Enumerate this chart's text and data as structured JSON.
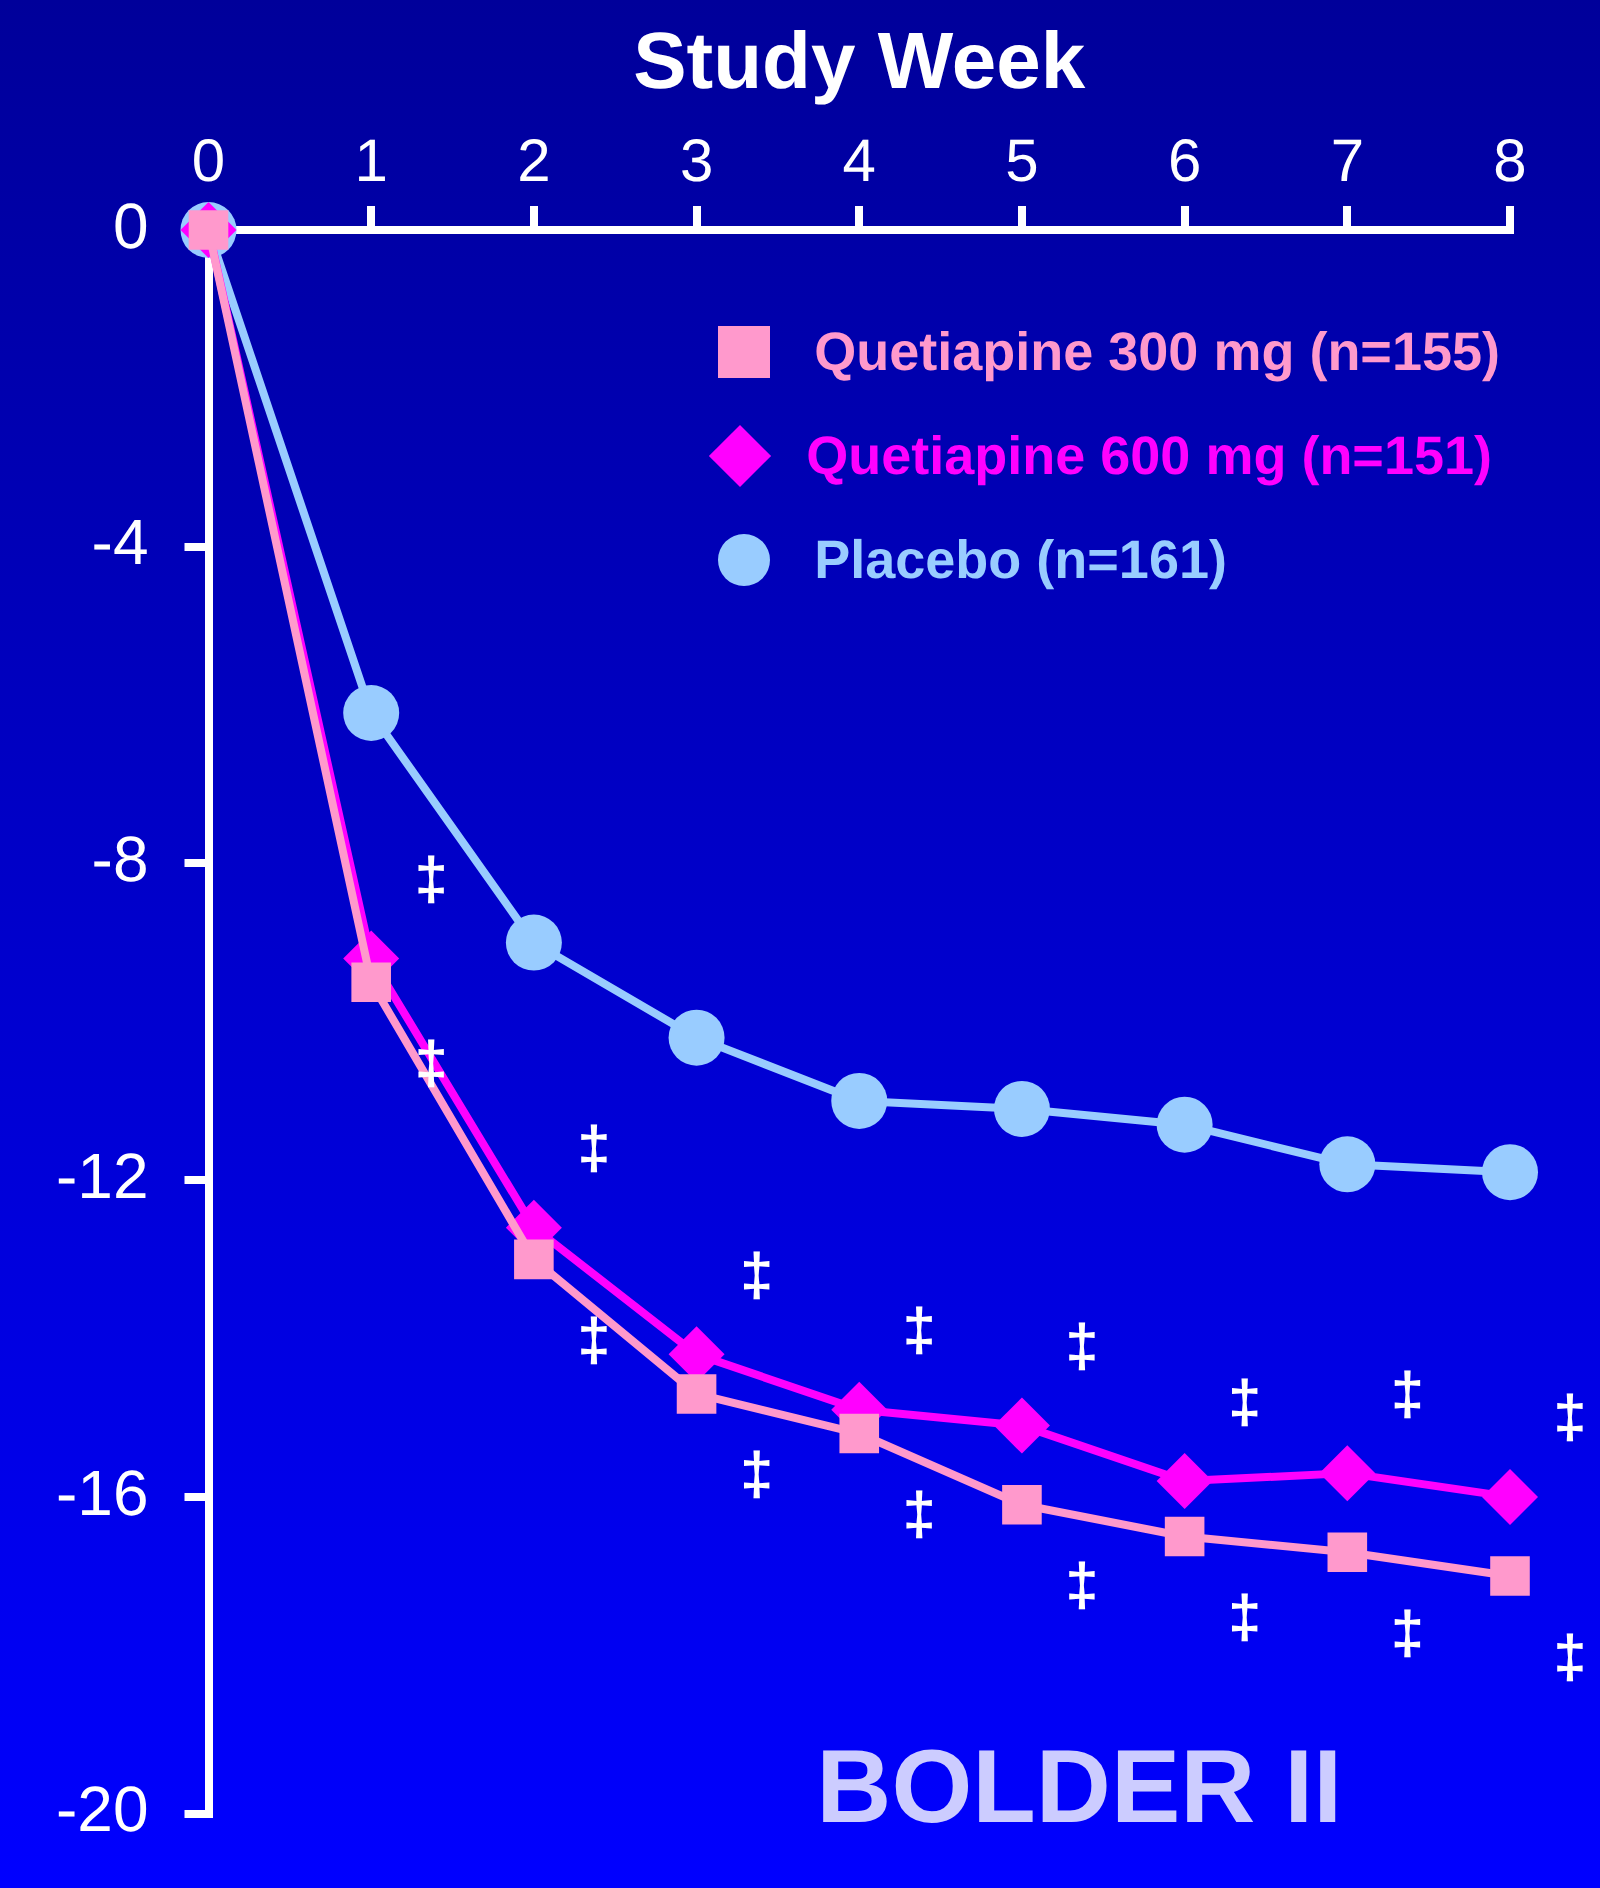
{
  "chart_data": {
    "type": "line",
    "xlabel": "Study Week",
    "x": [
      0,
      1,
      2,
      3,
      4,
      5,
      6,
      7,
      8
    ],
    "xlim": [
      0,
      8
    ],
    "xticks": [
      0,
      1,
      2,
      3,
      4,
      5,
      6,
      7,
      8
    ],
    "ylim": [
      -20,
      0
    ],
    "yticks": [
      0,
      -4,
      -8,
      -12,
      -16,
      -20
    ],
    "grid": false,
    "legend": "top right",
    "series": [
      {
        "name": "Quetiapine 300 mg (n=155)",
        "color": "#ff99cc",
        "marker": "square",
        "values": [
          0,
          -9.5,
          -13,
          -14.7,
          -15.2,
          -16.1,
          -16.5,
          -16.7,
          -17
        ]
      },
      {
        "name": "Quetiapine 600 mg (n=151)",
        "color": "#ff00ff",
        "marker": "diamond",
        "values": [
          0,
          -9.2,
          -12.6,
          -14.2,
          -14.9,
          -15.1,
          -15.8,
          -15.7,
          -16
        ]
      },
      {
        "name": "Placebo (n=161)",
        "color": "#99ccff",
        "marker": "circle",
        "values": [
          0,
          -6.1,
          -9,
          -10.2,
          -11,
          -11.1,
          -11.3,
          -11.8,
          -11.9
        ]
      }
    ],
    "annotations": [
      {
        "text": "‡",
        "x": 1,
        "y": -9.2
      },
      {
        "text": "‡",
        "x": 1,
        "y": -9.5
      },
      {
        "text": "‡",
        "x": 2,
        "y": -12.6
      },
      {
        "text": "‡",
        "x": 2,
        "y": -13
      },
      {
        "text": "‡",
        "x": 3,
        "y": -14.2
      },
      {
        "text": "‡",
        "x": 3,
        "y": -14.7
      },
      {
        "text": "‡",
        "x": 4,
        "y": -14.9
      },
      {
        "text": "‡",
        "x": 4,
        "y": -15.2
      },
      {
        "text": "‡",
        "x": 5,
        "y": -15.1
      },
      {
        "text": "‡",
        "x": 5,
        "y": -16.1
      },
      {
        "text": "‡",
        "x": 6,
        "y": -15.8
      },
      {
        "text": "‡",
        "x": 6,
        "y": -16.5
      },
      {
        "text": "‡",
        "x": 7,
        "y": -15.7
      },
      {
        "text": "‡",
        "x": 7,
        "y": -16.7
      },
      {
        "text": "‡",
        "x": 8,
        "y": -16
      },
      {
        "text": "‡",
        "x": 8,
        "y": -17
      },
      "BOLDER II"
    ]
  }
}
